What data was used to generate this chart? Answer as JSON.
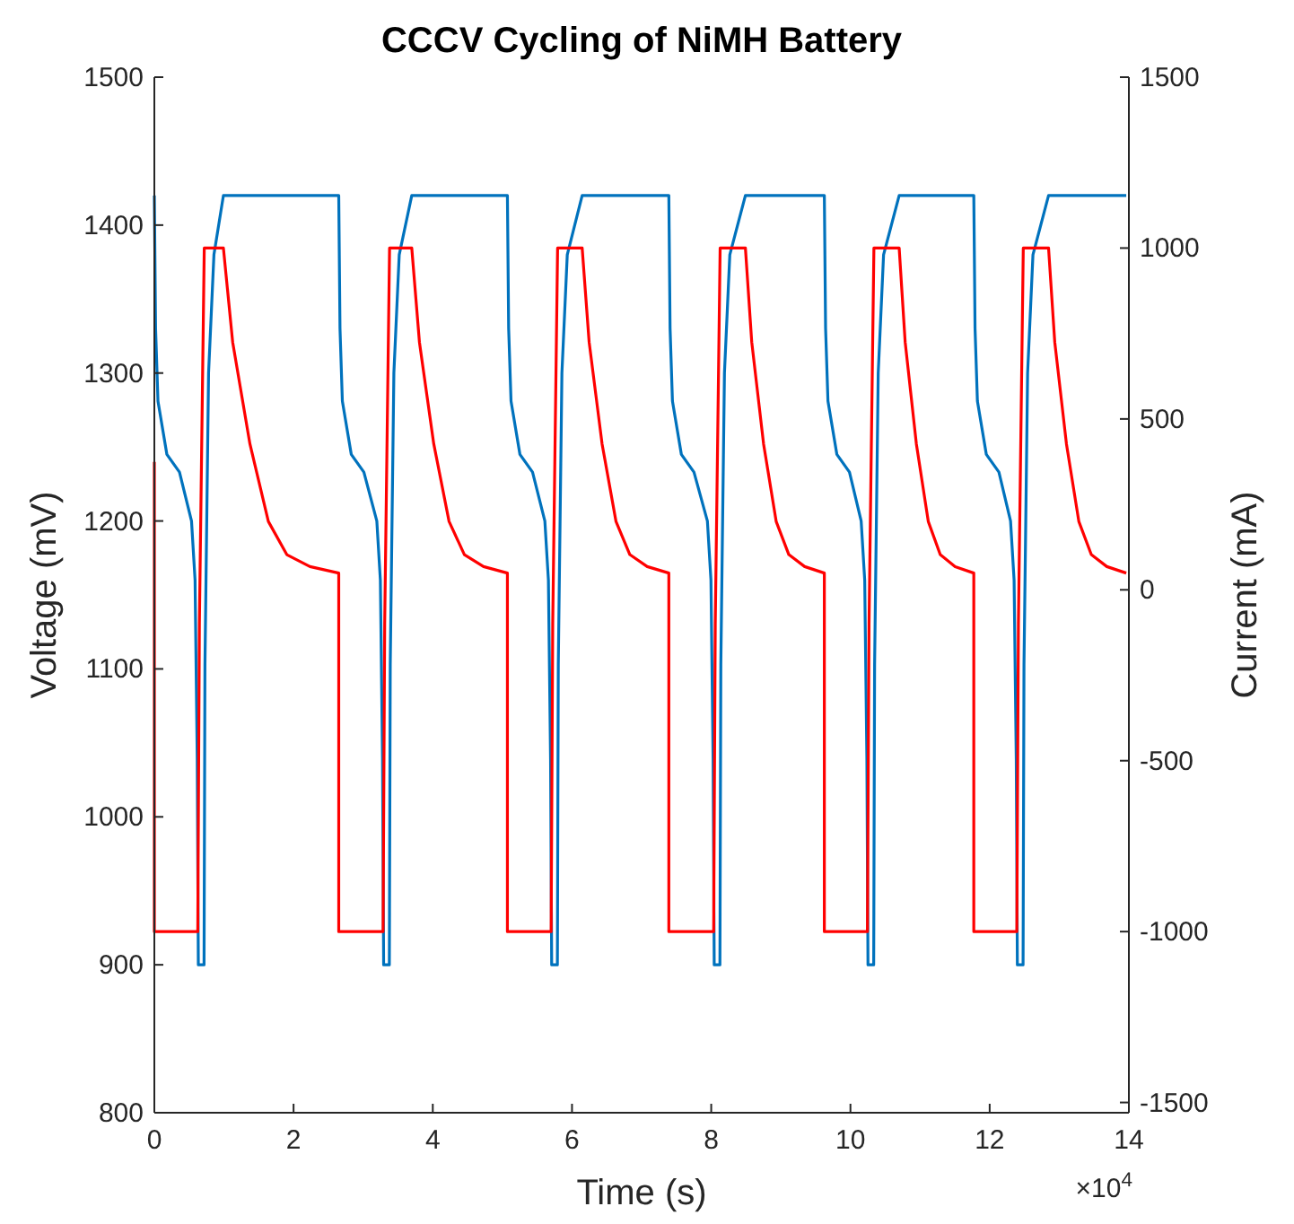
{
  "chart_data": {
    "type": "line",
    "title": "CCCV Cycling of NiMH Battery",
    "xlabel": "Time (s)",
    "ylabel": "Voltage (mV)",
    "y2label": "Current (mA)",
    "xlim": [
      0,
      14
    ],
    "xticks": [
      0,
      2,
      4,
      6,
      8,
      10,
      12,
      14
    ],
    "ylim": [
      800,
      1500
    ],
    "yticks": [
      800,
      900,
      1000,
      1100,
      1200,
      1300,
      1400,
      1500
    ],
    "y2lim": [
      -1530,
      1500
    ],
    "y2ticks": [
      -1500,
      -1000,
      -500,
      0,
      500,
      1000,
      1500
    ],
    "annotations": [
      "×10$^{4}$"
    ],
    "line_style": "solid",
    "series": [
      {
        "color": "#0072bd",
        "x": [
          0,
          0.018,
          0.052,
          0.18,
          0.361,
          0.534,
          0.585,
          0.616,
          0.632,
          0.714,
          0.727,
          0.779,
          0.856,
          0.992,
          2.649,
          2.667,
          2.701,
          2.829,
          3.01,
          3.196,
          3.247,
          3.278,
          3.294,
          3.376,
          3.389,
          3.441,
          3.518,
          3.698,
          5.072,
          5.09,
          5.124,
          5.252,
          5.433,
          5.61,
          5.661,
          5.692,
          5.708,
          5.79,
          5.803,
          5.855,
          5.932,
          6.146,
          7.391,
          7.409,
          7.443,
          7.571,
          7.752,
          7.945,
          7.996,
          8.027,
          8.043,
          8.125,
          8.138,
          8.19,
          8.267,
          8.491,
          9.625,
          9.643,
          9.677,
          9.805,
          9.986,
          10.154,
          10.205,
          10.236,
          10.252,
          10.334,
          10.347,
          10.399,
          10.476,
          10.7,
          11.772,
          11.79,
          11.824,
          11.952,
          12.133,
          12.3,
          12.351,
          12.382,
          12.398,
          12.48,
          12.493,
          12.545,
          12.622,
          12.846,
          13.962
        ],
        "values": [
          1420,
          1330,
          1281,
          1245,
          1233,
          1200,
          1160,
          1039,
          900,
          900,
          1103,
          1300,
          1380,
          1420,
          1420,
          1330,
          1281,
          1245,
          1233,
          1200,
          1160,
          1039,
          900,
          900,
          1103,
          1300,
          1380,
          1420,
          1420,
          1330,
          1281,
          1245,
          1233,
          1200,
          1160,
          1039,
          900,
          900,
          1103,
          1300,
          1380,
          1420,
          1420,
          1330,
          1281,
          1245,
          1233,
          1200,
          1160,
          1039,
          900,
          900,
          1103,
          1300,
          1380,
          1420,
          1420,
          1330,
          1281,
          1245,
          1233,
          1200,
          1160,
          1039,
          900,
          900,
          1103,
          1300,
          1380,
          1420,
          1420,
          1330,
          1281,
          1245,
          1233,
          1200,
          1160,
          1039,
          900,
          900,
          1103,
          1300,
          1380,
          1420,
          1420
        ]
      },
      {
        "color": "#ff0000",
        "axis": "y2",
        "x": [
          0,
          0,
          0.624,
          0.647,
          0.717,
          0.992,
          1.125,
          1.373,
          1.638,
          1.903,
          2.235,
          2.649,
          2.649,
          3.286,
          3.309,
          3.379,
          3.698,
          3.808,
          4.014,
          4.234,
          4.454,
          4.729,
          5.072,
          5.072,
          5.7,
          5.723,
          5.793,
          6.146,
          6.246,
          6.432,
          6.632,
          6.831,
          7.08,
          7.391,
          7.391,
          8.035,
          8.058,
          8.128,
          8.491,
          8.582,
          8.752,
          8.933,
          9.115,
          9.342,
          9.625,
          9.625,
          10.244,
          10.267,
          10.337,
          10.7,
          10.786,
          10.947,
          11.118,
          11.29,
          11.504,
          11.772,
          11.772,
          12.39,
          12.413,
          12.483,
          12.846,
          12.935,
          13.103,
          13.281,
          13.46,
          13.683,
          13.962
        ],
        "values": [
          374,
          -1000,
          -1000,
          -100,
          1000,
          1000,
          725,
          427,
          200,
          103,
          68,
          49,
          -1000,
          -1000,
          -100,
          1000,
          1000,
          725,
          427,
          200,
          103,
          68,
          49,
          -1000,
          -1000,
          -100,
          1000,
          1000,
          725,
          427,
          200,
          103,
          68,
          49,
          -1000,
          -1000,
          -100,
          1000,
          1000,
          725,
          427,
          200,
          103,
          68,
          49,
          -1000,
          -1000,
          -100,
          1000,
          1000,
          725,
          427,
          200,
          103,
          68,
          49,
          -1000,
          -1000,
          -100,
          1000,
          1000,
          725,
          427,
          200,
          103,
          68,
          49
        ]
      }
    ]
  }
}
